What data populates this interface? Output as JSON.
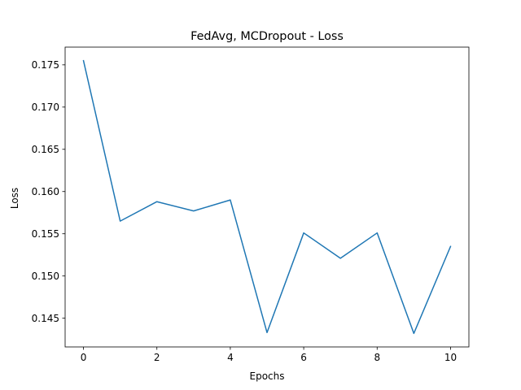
{
  "chart_data": {
    "type": "line",
    "title": "FedAvg, MCDropout - Loss",
    "xlabel": "Epochs",
    "ylabel": "Loss",
    "x": [
      0,
      1,
      2,
      3,
      4,
      5,
      6,
      7,
      8,
      9,
      10
    ],
    "series": [
      {
        "values": [
          0.1755,
          0.1565,
          0.1588,
          0.1577,
          0.159,
          0.1433,
          0.1551,
          0.1521,
          0.1551,
          0.1432,
          0.1535
        ],
        "color": "#1f77b4"
      }
    ],
    "xlim": [
      -0.5,
      10.5
    ],
    "ylim": [
      0.1416,
      0.1771
    ],
    "xticks": [
      0,
      2,
      4,
      6,
      8,
      10
    ],
    "xtick_labels": [
      "0",
      "2",
      "4",
      "6",
      "8",
      "10"
    ],
    "yticks": [
      0.145,
      0.15,
      0.155,
      0.16,
      0.165,
      0.17,
      0.175
    ],
    "ytick_labels": [
      "0.145",
      "0.150",
      "0.155",
      "0.160",
      "0.165",
      "0.170",
      "0.175"
    ],
    "grid": false,
    "legend": false
  }
}
